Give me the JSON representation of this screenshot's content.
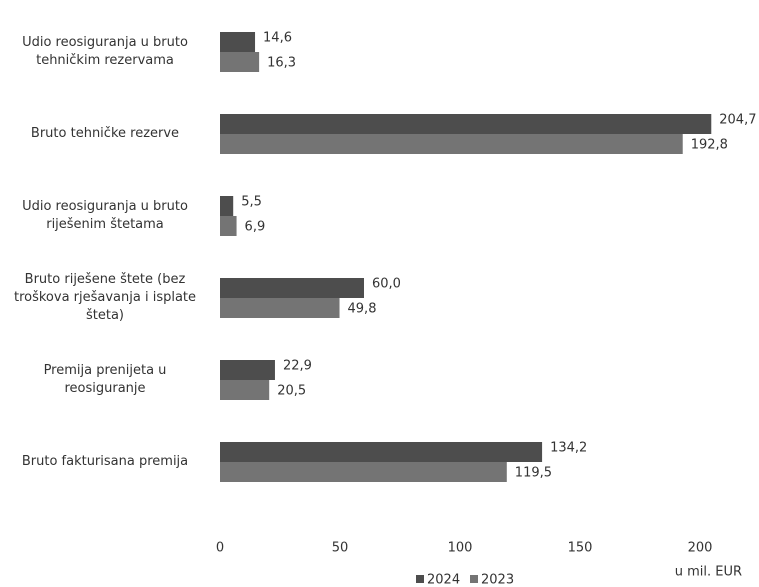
{
  "chart_data": {
    "type": "hbar",
    "categories": [
      "Udio reosiguranja u bruto tehničkim rezervama",
      "Bruto tehničke rezerve",
      "Udio reosiguranja u bruto riješenim štetama",
      "Bruto riješene štete (bez troškova rješavanja i isplate šteta)",
      "Premija prenijeta u reosiguranje",
      "Bruto fakturisana premija"
    ],
    "series": [
      {
        "name": "2024",
        "color": "#4d4d4d",
        "values": [
          14.6,
          204.7,
          5.5,
          60.0,
          22.9,
          134.2
        ],
        "value_labels": [
          "14,6",
          "204,7",
          "5,5",
          "60,0",
          "22,9",
          "134,2"
        ]
      },
      {
        "name": "2023",
        "color": "#747474",
        "values": [
          16.3,
          192.8,
          6.9,
          49.8,
          20.5,
          119.5
        ],
        "value_labels": [
          "16,3",
          "192,8",
          "6,9",
          "49,8",
          "20,5",
          "119,5"
        ]
      }
    ],
    "xlim": [
      0,
      220
    ],
    "xticks": [
      0,
      50,
      100,
      150,
      200
    ],
    "x_label": "u mil. EUR",
    "legend": "bottom"
  }
}
